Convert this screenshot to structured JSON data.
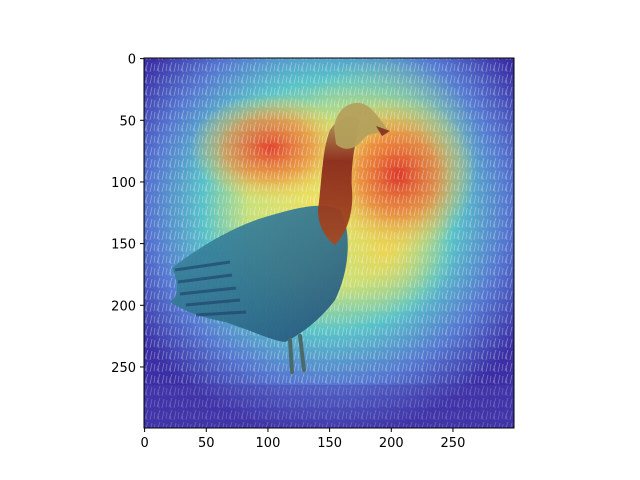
{
  "figure": {
    "description_kind": "matplotlib imshow of photo with heatmap overlay",
    "x_axis": {
      "ticks": [
        0,
        50,
        100,
        150,
        200,
        250
      ],
      "range": [
        0,
        299
      ]
    },
    "y_axis": {
      "ticks": [
        0,
        50,
        100,
        150,
        200,
        250
      ],
      "range": [
        0,
        299
      ],
      "inverted": true
    },
    "colormap": "jet",
    "colors": {
      "frame": "#000000",
      "background": "#ffffff",
      "hot": "#e0312a",
      "warm": "#f2c84a",
      "cool": "#3fb3c8",
      "cold": "#4a3fb0",
      "bird_body": "#2f6c86",
      "bird_neck": "#8a2a1a",
      "bird_head": "#b39a57"
    }
  }
}
